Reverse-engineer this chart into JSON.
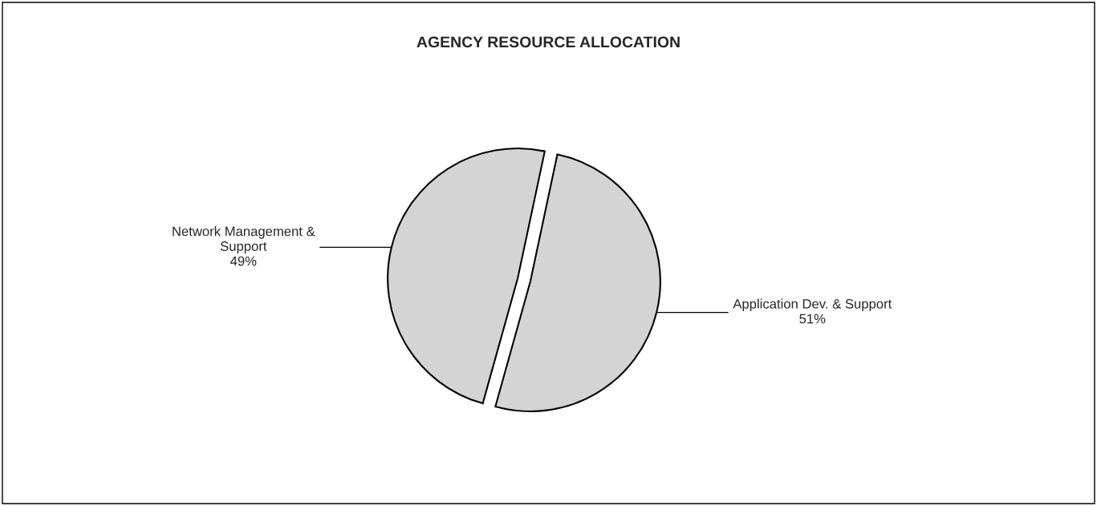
{
  "chart_data": {
    "type": "pie",
    "title": "AGENCY RESOURCE ALLOCATION",
    "categories": [
      "Application Dev. & Support",
      "Network Management &\nSupport"
    ],
    "values": [
      51,
      49
    ],
    "value_labels": [
      "51%",
      "49%"
    ],
    "colors": [
      "#d4d4d4",
      "#d4d4d4"
    ],
    "legend": false
  }
}
